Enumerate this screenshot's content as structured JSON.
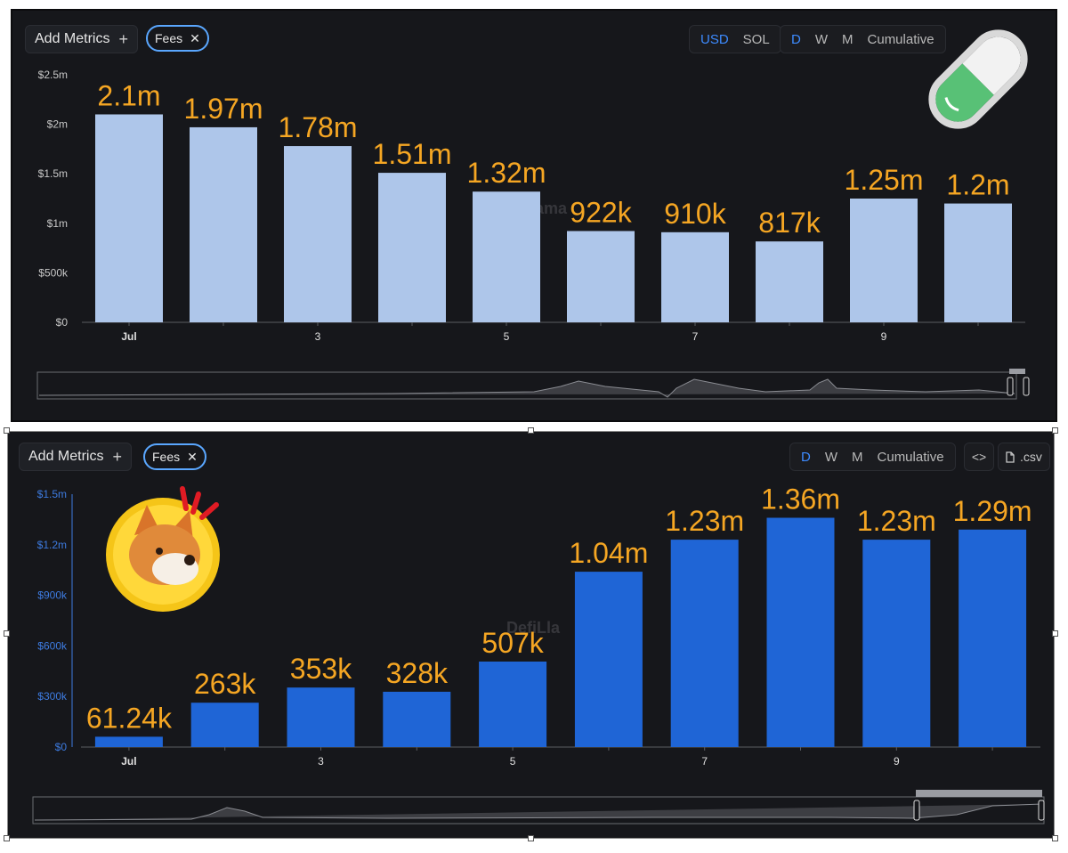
{
  "top": {
    "add_metrics": "Add Metrics",
    "plus": "+",
    "chip_label": "Fees",
    "chip_close": "✕",
    "currency": [
      "USD",
      "SOL"
    ],
    "currency_active": "USD",
    "period": [
      "D",
      "W",
      "M",
      "Cumulative"
    ],
    "period_active": "D",
    "watermark": "fiLlama"
  },
  "bottom": {
    "add_metrics": "Add Metrics",
    "plus": "+",
    "chip_label": "Fees",
    "chip_close": "✕",
    "period": [
      "D",
      "W",
      "M",
      "Cumulative"
    ],
    "period_active": "D",
    "embed_icon": "<>",
    "csv_label": ".csv",
    "watermark": "DefiLla"
  },
  "icons": {
    "top_sticker": "pill-capsule-icon",
    "bottom_sticker": "shiba-dog-coin-icon",
    "csv_file": "file-icon",
    "embed": "code-brackets-icon"
  },
  "colors": {
    "top_bar": "#aec6ea",
    "bottom_bar": "#1f65d6",
    "value_label": "#f5a623",
    "background": "#16171b"
  },
  "chart_data": [
    {
      "type": "bar",
      "x_ticks": [
        "Jul",
        "",
        "3",
        "",
        "5",
        "",
        "7",
        "",
        "9",
        ""
      ],
      "values": [
        2100000,
        1970000,
        1780000,
        1510000,
        1320000,
        922000,
        910000,
        817000,
        1250000,
        1200000
      ],
      "value_labels": [
        "2.1m",
        "1.97m",
        "1.78m",
        "1.51m",
        "1.32m",
        "922k",
        "910k",
        "817k",
        "1.25m",
        "1.2m"
      ],
      "y_ticks": [
        "$0",
        "$500k",
        "$1m",
        "$1.5m",
        "$2m",
        "$2.5m"
      ],
      "ylim": [
        0,
        2500000
      ],
      "grid": false
    },
    {
      "type": "bar",
      "x_ticks": [
        "Jul",
        "",
        "3",
        "",
        "5",
        "",
        "7",
        "",
        "9",
        ""
      ],
      "values": [
        61240,
        263000,
        353000,
        328000,
        507000,
        1040000,
        1230000,
        1360000,
        1230000,
        1290000
      ],
      "value_labels": [
        "61.24k",
        "263k",
        "353k",
        "328k",
        "507k",
        "1.04m",
        "1.23m",
        "1.36m",
        "1.23m",
        "1.29m"
      ],
      "y_ticks": [
        "$0",
        "$300k",
        "$600k",
        "$900k",
        "$1.2m",
        "$1.5m"
      ],
      "ylim": [
        0,
        1500000
      ],
      "grid": false
    }
  ]
}
